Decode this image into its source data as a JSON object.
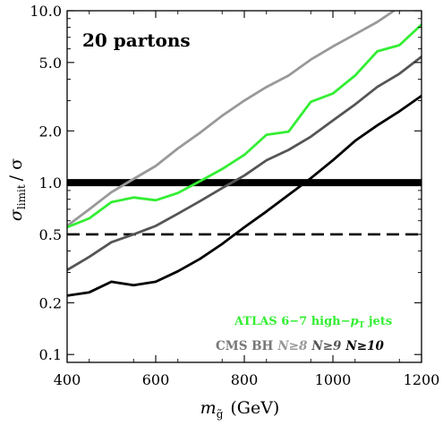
{
  "chart_data": {
    "type": "line",
    "xlabel": "m",
    "xlabel_sub": "g̃",
    "xlabel_unit": "(GeV)",
    "ylabel": "σ",
    "ylabel_sub": "limit",
    "ylabel_tail": "/ σ",
    "xlim": [
      400,
      1200
    ],
    "ylim": [
      0.09,
      10.0
    ],
    "yscale": "log",
    "grid": false,
    "x_ticks": [
      400,
      600,
      800,
      1000,
      1200
    ],
    "y_ticks": [
      {
        "value": 0.1,
        "label": "0.1"
      },
      {
        "value": 0.2,
        "label": "0.2"
      },
      {
        "value": 0.5,
        "label": "0.5"
      },
      {
        "value": 1.0,
        "label": "1.0"
      },
      {
        "value": 2.0,
        "label": "2.0"
      },
      {
        "value": 5.0,
        "label": "5.0"
      },
      {
        "value": 10.0,
        "label": "10.0"
      }
    ],
    "title": "20 partons",
    "reference_lines": [
      {
        "y": 1.0,
        "style": "solid-thick",
        "color": "#000000"
      },
      {
        "y": 0.5,
        "style": "dashed",
        "color": "#000000"
      }
    ],
    "series": [
      {
        "key": "cms8",
        "color": "#999999",
        "x": [
          400,
          450,
          500,
          550,
          600,
          650,
          700,
          750,
          800,
          850,
          900,
          950,
          1000,
          1050,
          1100,
          1150
        ],
        "y": [
          0.56,
          0.7,
          0.88,
          1.05,
          1.25,
          1.58,
          1.95,
          2.45,
          3.0,
          3.6,
          4.2,
          5.2,
          6.2,
          7.3,
          8.6,
          10.5
        ]
      },
      {
        "key": "atlas",
        "color": "#33ee33",
        "x": [
          400,
          450,
          500,
          550,
          600,
          650,
          700,
          750,
          800,
          850,
          900,
          950,
          1000,
          1050,
          1100,
          1150,
          1200
        ],
        "y": [
          0.55,
          0.62,
          0.77,
          0.82,
          0.79,
          0.87,
          1.02,
          1.2,
          1.45,
          1.9,
          1.98,
          2.95,
          3.3,
          4.2,
          5.8,
          6.3,
          8.3
        ]
      },
      {
        "key": "cms9",
        "color": "#555555",
        "x": [
          400,
          450,
          500,
          550,
          600,
          650,
          700,
          750,
          800,
          850,
          900,
          950,
          1000,
          1050,
          1100,
          1150,
          1200
        ],
        "y": [
          0.31,
          0.37,
          0.45,
          0.5,
          0.56,
          0.66,
          0.78,
          0.93,
          1.1,
          1.35,
          1.55,
          1.85,
          2.3,
          2.85,
          3.6,
          4.3,
          5.4
        ]
      },
      {
        "key": "cms10",
        "color": "#000000",
        "x": [
          400,
          450,
          500,
          550,
          600,
          650,
          700,
          750,
          800,
          850,
          900,
          950,
          1000,
          1050,
          1100,
          1150,
          1200
        ],
        "y": [
          0.22,
          0.23,
          0.265,
          0.253,
          0.265,
          0.305,
          0.36,
          0.44,
          0.55,
          0.68,
          0.85,
          1.06,
          1.35,
          1.75,
          2.15,
          2.6,
          3.2
        ]
      }
    ],
    "annotations": {
      "atlas": {
        "prefix": "ATLAS 6−7 high−",
        "italic": "p",
        "sub": "T",
        "suffix": " jets"
      },
      "cms": {
        "label": "CMS BH",
        "n8": "N≥8",
        "n9": "N≥9",
        "n10": "N≥10"
      }
    }
  }
}
